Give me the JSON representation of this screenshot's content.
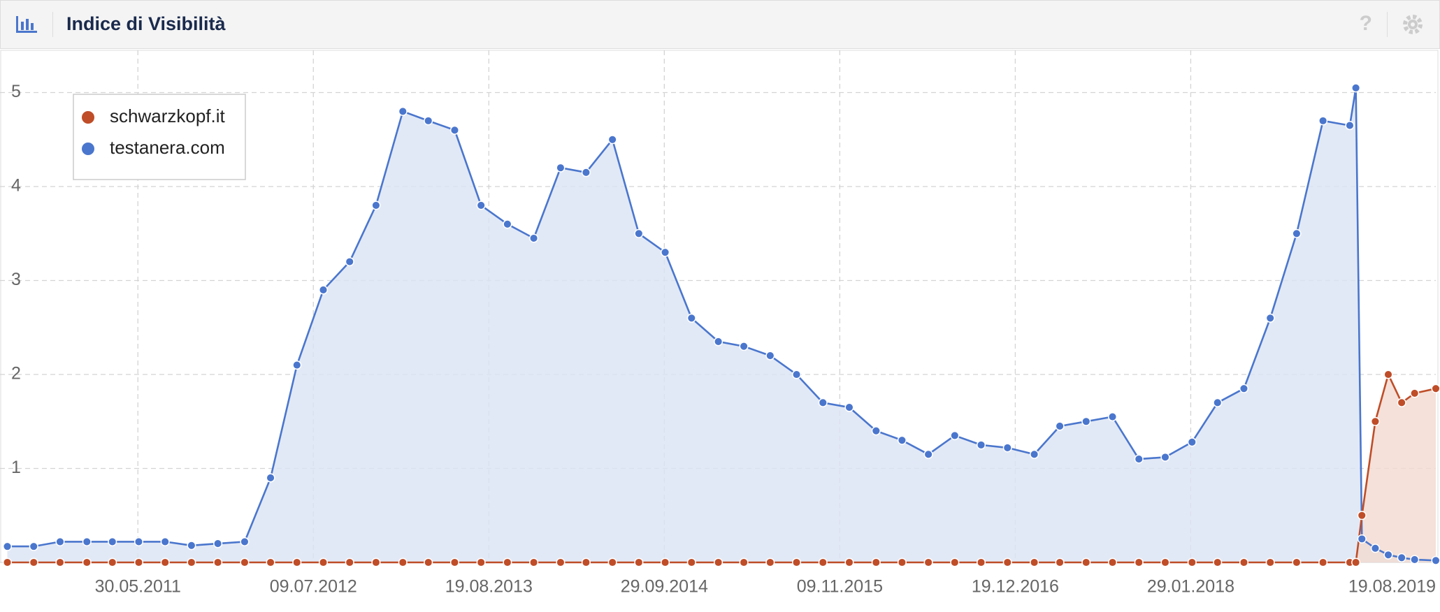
{
  "header": {
    "title": "Indice di Visibilità",
    "help_icon": "?"
  },
  "chart_data": {
    "type": "line",
    "area": true,
    "grid": true,
    "legend": "top-left",
    "xlim": [
      "15.07.2010",
      "19.08.2019"
    ],
    "xticks": [
      "30.05.2011",
      "09.07.2012",
      "19.08.2013",
      "29.09.2014",
      "09.11.2015",
      "19.12.2016",
      "29.01.2018",
      "19.08.2019"
    ],
    "ylim": [
      0,
      5.45
    ],
    "yticks": [
      1,
      2,
      3,
      4,
      5
    ],
    "x": [
      "01.08.2010",
      "01.10.2010",
      "01.12.2010",
      "01.02.2011",
      "01.04.2011",
      "01.06.2011",
      "01.08.2011",
      "01.10.2011",
      "01.12.2011",
      "01.02.2012",
      "01.04.2012",
      "01.06.2012",
      "01.08.2012",
      "01.10.2012",
      "01.12.2012",
      "01.02.2013",
      "01.04.2013",
      "01.06.2013",
      "01.08.2013",
      "01.10.2013",
      "01.12.2013",
      "01.02.2014",
      "01.04.2014",
      "01.06.2014",
      "01.08.2014",
      "01.10.2014",
      "01.12.2014",
      "01.02.2015",
      "01.04.2015",
      "01.06.2015",
      "01.08.2015",
      "01.10.2015",
      "01.12.2015",
      "01.02.2016",
      "01.04.2016",
      "01.06.2016",
      "01.08.2016",
      "01.10.2016",
      "01.12.2016",
      "01.02.2017",
      "01.04.2017",
      "01.06.2017",
      "01.08.2017",
      "01.10.2017",
      "01.12.2017",
      "01.02.2018",
      "01.04.2018",
      "01.06.2018",
      "01.08.2018",
      "01.10.2018",
      "01.12.2018",
      "01.02.2019",
      "15.02.2019",
      "01.03.2019",
      "01.04.2019",
      "01.05.2019",
      "01.06.2019",
      "01.07.2019",
      "19.08.2019"
    ],
    "series": [
      {
        "name": "testanera.com",
        "color": "#4a76cd",
        "fill": "#dbe3f4",
        "values": [
          0.17,
          0.17,
          0.22,
          0.22,
          0.22,
          0.22,
          0.22,
          0.18,
          0.2,
          0.22,
          0.9,
          2.1,
          2.9,
          3.2,
          3.8,
          4.8,
          4.7,
          4.6,
          3.8,
          3.6,
          3.45,
          4.2,
          4.15,
          4.5,
          3.5,
          3.3,
          2.6,
          2.35,
          2.3,
          2.2,
          2.0,
          1.7,
          1.65,
          1.4,
          1.3,
          1.15,
          1.35,
          1.25,
          1.22,
          1.15,
          1.45,
          1.5,
          1.55,
          1.1,
          1.12,
          1.28,
          1.7,
          1.85,
          2.6,
          3.5,
          4.7,
          4.65,
          5.05,
          0.25,
          0.15,
          0.08,
          0.05,
          0.03,
          0.02
        ]
      },
      {
        "name": "schwarzkopf.it",
        "color": "#bf4d28",
        "fill": "#f3d9d0",
        "values": [
          0,
          0,
          0,
          0,
          0,
          0,
          0,
          0,
          0,
          0,
          0,
          0,
          0,
          0,
          0,
          0,
          0,
          0,
          0,
          0,
          0,
          0,
          0,
          0,
          0,
          0,
          0,
          0,
          0,
          0,
          0,
          0,
          0,
          0,
          0,
          0,
          0,
          0,
          0,
          0,
          0,
          0,
          0,
          0,
          0,
          0,
          0,
          0,
          0,
          0,
          0,
          0,
          0,
          0.5,
          1.5,
          2.0,
          1.7,
          1.8,
          1.85
        ]
      }
    ]
  }
}
